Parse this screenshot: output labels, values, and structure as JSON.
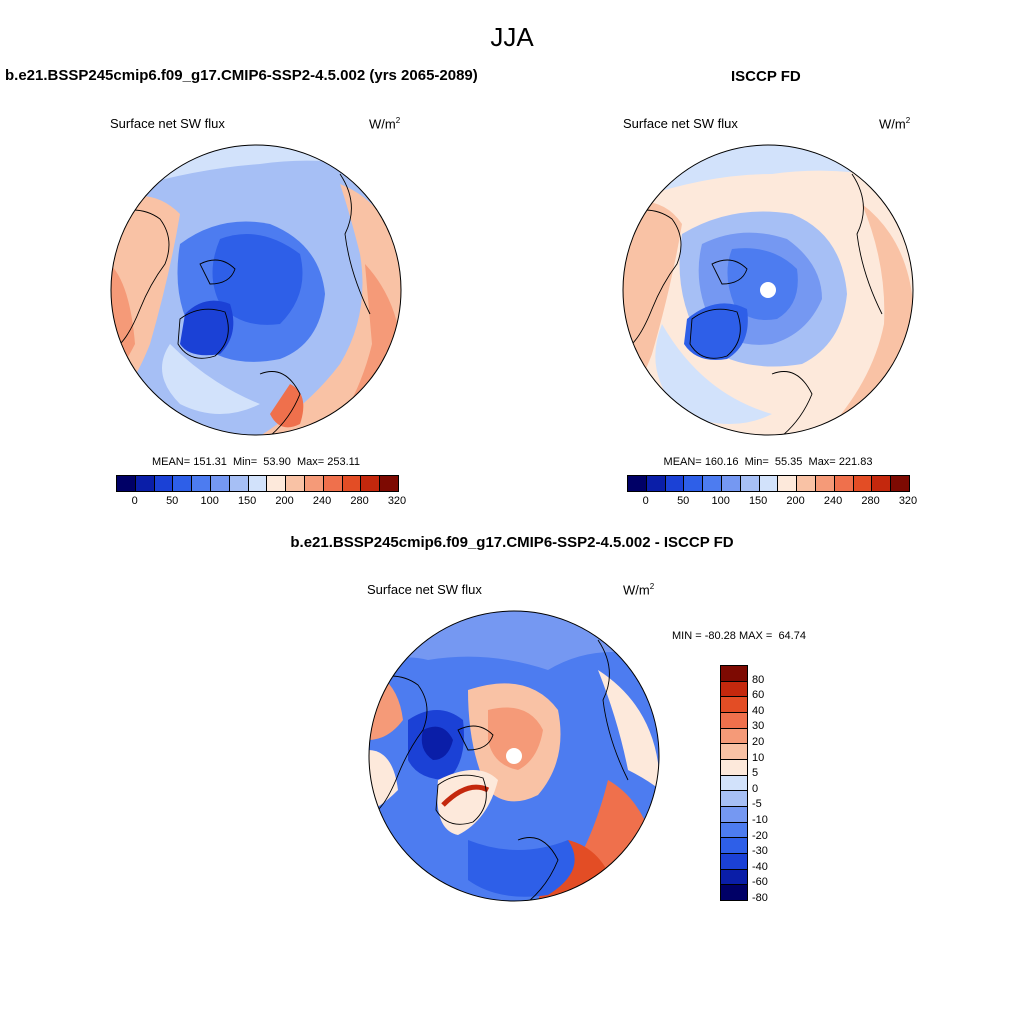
{
  "page": {
    "season": "JJA"
  },
  "panels": {
    "model": {
      "case": "b.e21.BSSP245cmip6.f09_g17.CMIP6-SSP2-4.5.002 (yrs 2065-2089)",
      "variable": "Surface net SW flux",
      "units_base": "W/m",
      "units_exp": "2",
      "stats": {
        "mean_label": "MEAN=",
        "mean": "151.31",
        "min_label": "Min=",
        "min": "53.90",
        "max_label": "Max=",
        "max": "253.11"
      }
    },
    "obs": {
      "case": "ISCCP FD",
      "variable": "Surface net SW flux",
      "units_base": "W/m",
      "units_exp": "2",
      "stats": {
        "mean_label": "MEAN=",
        "mean": "160.16",
        "min_label": "Min=",
        "min": "55.35",
        "max_label": "Max=",
        "max": "221.83"
      }
    },
    "diff": {
      "case": "b.e21.BSSP245cmip6.f09_g17.CMIP6-SSP2-4.5.002 - ISCCP FD",
      "variable": "Surface net SW flux",
      "units_base": "W/m",
      "units_exp": "2",
      "stats": {
        "min_label": "MIN =",
        "min": "-80.28",
        "max_label": "MAX =",
        "max": "64.74"
      }
    }
  },
  "colorbars": {
    "abs": {
      "colors": [
        "#000066",
        "#0a1ea8",
        "#1b41d6",
        "#2e5fe8",
        "#4d7cf0",
        "#7598f2",
        "#a6bff5",
        "#d2e2fb",
        "#fde9db",
        "#f9c2a5",
        "#f59a78",
        "#ef704c",
        "#e34d25",
        "#c4280d",
        "#7d0a02"
      ],
      "tick_labels": [
        "0",
        "50",
        "100",
        "150",
        "200",
        "240",
        "280",
        "320"
      ]
    },
    "diff": {
      "colors": [
        "#000066",
        "#0a1ea8",
        "#1b41d6",
        "#2e5fe8",
        "#4d7cf0",
        "#7598f2",
        "#a6bff5",
        "#d2e2fb",
        "#fde9db",
        "#f9c2a5",
        "#f59a78",
        "#ef704c",
        "#e34d25",
        "#c4280d",
        "#7d0a02"
      ],
      "tick_labels": [
        "80",
        "60",
        "40",
        "30",
        "20",
        "10",
        "5",
        "0",
        "-5",
        "-10",
        "-20",
        "-30",
        "-40",
        "-60",
        "-80"
      ]
    }
  }
}
